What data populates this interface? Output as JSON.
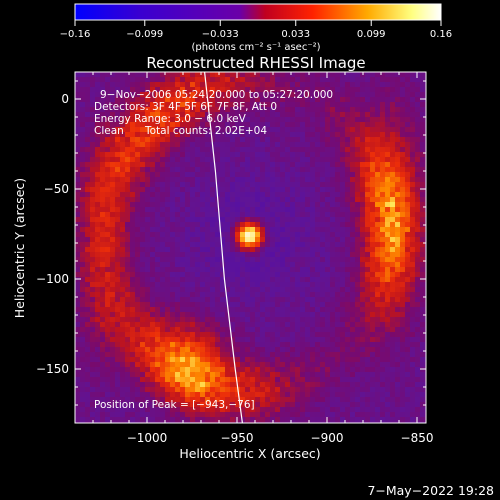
{
  "chart_data": {
    "type": "heatmap",
    "title": "Reconstructed RHESSI Image",
    "xlabel": "Heliocentric X (arcsec)",
    "ylabel": "Heliocentric Y (arcsec)",
    "xlim": [
      -1040,
      -845
    ],
    "ylim": [
      -180,
      15
    ],
    "x_ticks": [
      -1000,
      -950,
      -900,
      -850
    ],
    "x_tick_labels": [
      "−1000",
      "−950",
      "−900",
      "−850"
    ],
    "y_ticks": [
      0,
      -50,
      -100,
      -150
    ],
    "y_tick_labels": [
      "0",
      "−50",
      "−100",
      "−150"
    ],
    "annotations": [
      "9−Nov−2006 05:24:20.000 to 05:27:20.000",
      "Detectors: 3F 4F 5F 6F 7F 8F, Att 0",
      "Energy Range: 3.0 − 6.0 keV",
      "Clean",
      "Total counts: 2.02E+04"
    ],
    "peak_label": "Position of Peak = [−943,−76]",
    "peak": {
      "x": -943,
      "y": -76
    },
    "colorbar": {
      "range": [
        -0.16,
        0.16
      ],
      "tick_values": [
        -0.16,
        -0.099,
        -0.033,
        0.033,
        0.099,
        0.16
      ],
      "tick_labels": [
        "−0.16",
        "−0.099",
        "−0.033",
        "0.033",
        "0.099",
        "0.16"
      ],
      "units_label": "(photons cm⁻² s⁻¹ asec⁻²)",
      "colors": [
        "#0000ff",
        "#3a00d0",
        "#6a00a8",
        "#ff2200",
        "#ffaa00",
        "#ffff80",
        "#ffffff"
      ]
    },
    "limb_curve": [
      [
        -968,
        15
      ],
      [
        -962,
        -40
      ],
      [
        -957,
        -100
      ],
      [
        -951,
        -150
      ],
      [
        -947,
        -180
      ]
    ],
    "grid": false
  },
  "timestamp": "7−May−2022 19:28"
}
